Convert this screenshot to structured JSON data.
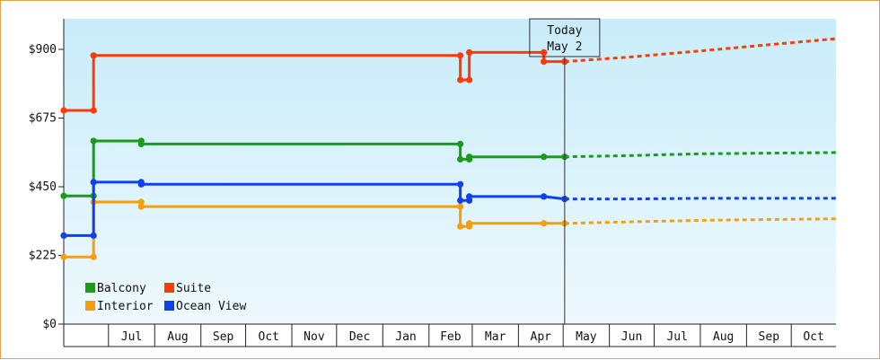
{
  "chart_data": {
    "type": "line",
    "title": "",
    "xlabel": "",
    "ylabel": "",
    "ylim": [
      0,
      1000
    ],
    "yticks": [
      0,
      225,
      450,
      675,
      900
    ],
    "ytick_labels": [
      "$0",
      "$225",
      "$450",
      "$675",
      "$900"
    ],
    "xlim": [
      "2023-06-01",
      "2024-10-31"
    ],
    "month_labels": [
      {
        "label": "Jul",
        "date": "2023-07-01"
      },
      {
        "label": "Aug",
        "date": "2023-08-01"
      },
      {
        "label": "Sep",
        "date": "2023-09-01"
      },
      {
        "label": "Oct",
        "date": "2023-10-01"
      },
      {
        "label": "Nov",
        "date": "2023-11-01"
      },
      {
        "label": "Dec",
        "date": "2023-12-01"
      },
      {
        "label": "Jan",
        "date": "2024-01-01"
      },
      {
        "label": "Feb",
        "date": "2024-02-01"
      },
      {
        "label": "Mar",
        "date": "2024-03-01"
      },
      {
        "label": "Apr",
        "date": "2024-04-01"
      },
      {
        "label": "May",
        "date": "2024-05-01"
      },
      {
        "label": "Jun",
        "date": "2024-06-01"
      },
      {
        "label": "Jul",
        "date": "2024-07-01"
      },
      {
        "label": "Aug",
        "date": "2024-08-01"
      },
      {
        "label": "Sep",
        "date": "2024-09-01"
      },
      {
        "label": "Oct",
        "date": "2024-10-01"
      }
    ],
    "today": {
      "line1": "Today",
      "line2": "May 2",
      "date": "2024-05-02"
    },
    "grid": false,
    "legend_placement": "bottom-left",
    "series": [
      {
        "name": "Balcony",
        "color": "#1a9c1a",
        "history": [
          [
            "2023-06-01",
            420
          ],
          [
            "2023-06-21",
            420
          ],
          [
            "2023-06-21",
            600
          ],
          [
            "2023-07-23",
            600
          ],
          [
            "2023-07-23",
            590
          ],
          [
            "2024-02-22",
            590
          ],
          [
            "2024-02-22",
            540
          ],
          [
            "2024-02-28",
            540
          ],
          [
            "2024-02-28",
            548
          ],
          [
            "2024-04-18",
            548
          ],
          [
            "2024-05-02",
            548
          ]
        ],
        "forecast": [
          [
            "2024-05-02",
            548
          ],
          [
            "2024-06-15",
            552
          ],
          [
            "2024-08-01",
            558
          ],
          [
            "2024-10-31",
            562
          ]
        ]
      },
      {
        "name": "Suite",
        "color": "#ff3a08",
        "history": [
          [
            "2023-06-01",
            700
          ],
          [
            "2023-06-21",
            700
          ],
          [
            "2023-06-21",
            880
          ],
          [
            "2024-02-22",
            880
          ],
          [
            "2024-02-22",
            800
          ],
          [
            "2024-02-28",
            800
          ],
          [
            "2024-02-28",
            890
          ],
          [
            "2024-04-18",
            890
          ],
          [
            "2024-04-18",
            860
          ],
          [
            "2024-05-02",
            860
          ]
        ],
        "forecast": [
          [
            "2024-05-02",
            860
          ],
          [
            "2024-06-15",
            875
          ],
          [
            "2024-08-01",
            895
          ],
          [
            "2024-10-31",
            935
          ]
        ]
      },
      {
        "name": "Interior",
        "color": "#f5a00a",
        "history": [
          [
            "2023-06-01",
            220
          ],
          [
            "2023-06-21",
            220
          ],
          [
            "2023-06-21",
            400
          ],
          [
            "2023-07-23",
            400
          ],
          [
            "2023-07-23",
            385
          ],
          [
            "2024-02-22",
            385
          ],
          [
            "2024-02-22",
            320
          ],
          [
            "2024-02-28",
            320
          ],
          [
            "2024-02-28",
            330
          ],
          [
            "2024-04-18",
            330
          ],
          [
            "2024-05-02",
            330
          ]
        ],
        "forecast": [
          [
            "2024-05-02",
            330
          ],
          [
            "2024-06-15",
            335
          ],
          [
            "2024-08-01",
            340
          ],
          [
            "2024-10-31",
            345
          ]
        ]
      },
      {
        "name": "Ocean View",
        "color": "#1040ee",
        "history": [
          [
            "2023-06-01",
            290
          ],
          [
            "2023-06-21",
            290
          ],
          [
            "2023-06-21",
            465
          ],
          [
            "2023-07-23",
            465
          ],
          [
            "2023-07-23",
            458
          ],
          [
            "2024-02-22",
            458
          ],
          [
            "2024-02-22",
            405
          ],
          [
            "2024-02-28",
            405
          ],
          [
            "2024-02-28",
            418
          ],
          [
            "2024-04-18",
            418
          ],
          [
            "2024-05-02",
            410
          ]
        ],
        "forecast": [
          [
            "2024-05-02",
            410
          ],
          [
            "2024-06-15",
            410
          ],
          [
            "2024-08-01",
            412
          ],
          [
            "2024-10-31",
            412
          ]
        ]
      }
    ]
  }
}
